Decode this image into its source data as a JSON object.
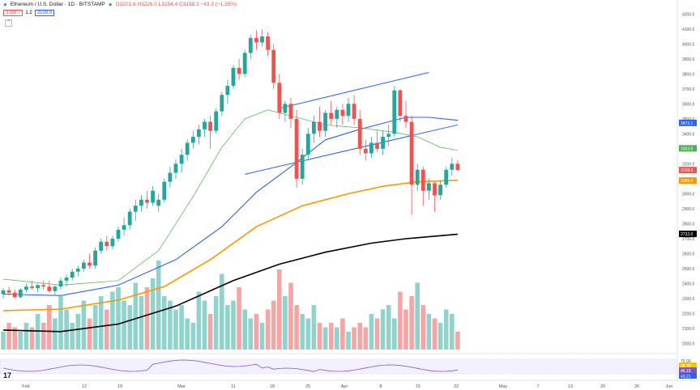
{
  "header": {
    "symbol": "Ethereum / U.S. Dollar · 1D · BITSTAMP",
    "ohlc": "O3201.6 H3226.0 L3154.4 C3158.3 −43.3 (−1.35%)",
    "bid": "3158.7",
    "spread": "1.2",
    "ask": "3159.9",
    "logo": "17"
  },
  "colors": {
    "up": "#26a69a",
    "down": "#ef5350",
    "ma20": "#4caf50",
    "ma50": "#2962ff",
    "ma100": "#ff9800",
    "ma200": "#000000",
    "channel": "#2962ff"
  },
  "chart_data": {
    "type": "candlestick",
    "x_labels": [
      "Feb",
      "12",
      "19",
      "Mar",
      "11",
      "18",
      "25",
      "Apr",
      "8",
      "15",
      "22",
      "May",
      "7",
      "13",
      "20",
      "26",
      "Jun"
    ],
    "y_ticks": [
      "4200.0",
      "4100.0",
      "4000.0",
      "3900.0",
      "3800.0",
      "3700.0",
      "3600.0",
      "3500.0",
      "3400.0",
      "3300.0",
      "3200.0",
      "3100.0",
      "3000.0",
      "2900.0",
      "2800.0",
      "2700.0",
      "2600.0",
      "2500.0",
      "2400.0",
      "2300.0",
      "2200.0",
      "2100.0",
      "2000.0"
    ],
    "ylim": [
      1960,
      4250
    ],
    "ohlc": [
      [
        2330,
        2370,
        2300,
        2355
      ],
      [
        2355,
        2380,
        2320,
        2340
      ],
      [
        2340,
        2360,
        2300,
        2310
      ],
      [
        2310,
        2370,
        2300,
        2360
      ],
      [
        2360,
        2400,
        2340,
        2380
      ],
      [
        2380,
        2420,
        2360,
        2370
      ],
      [
        2370,
        2400,
        2340,
        2390
      ],
      [
        2390,
        2420,
        2360,
        2380
      ],
      [
        2380,
        2420,
        2340,
        2350
      ],
      [
        2350,
        2390,
        2320,
        2380
      ],
      [
        2380,
        2440,
        2360,
        2420
      ],
      [
        2420,
        2460,
        2380,
        2440
      ],
      [
        2440,
        2500,
        2420,
        2480
      ],
      [
        2480,
        2520,
        2450,
        2500
      ],
      [
        2500,
        2560,
        2480,
        2540
      ],
      [
        2540,
        2600,
        2500,
        2520
      ],
      [
        2520,
        2640,
        2500,
        2620
      ],
      [
        2620,
        2700,
        2600,
        2680
      ],
      [
        2680,
        2720,
        2620,
        2650
      ],
      [
        2650,
        2720,
        2630,
        2700
      ],
      [
        2700,
        2780,
        2680,
        2760
      ],
      [
        2760,
        2840,
        2720,
        2790
      ],
      [
        2790,
        2900,
        2760,
        2880
      ],
      [
        2880,
        2960,
        2820,
        2920
      ],
      [
        2920,
        2990,
        2880,
        2960
      ],
      [
        2960,
        3020,
        2900,
        2940
      ],
      [
        2940,
        3050,
        2920,
        3020
      ],
      [
        2920,
        3000,
        2880,
        2960
      ],
      [
        2960,
        3100,
        2940,
        3080
      ],
      [
        3080,
        3180,
        3040,
        3140
      ],
      [
        3140,
        3230,
        3100,
        3200
      ],
      [
        3200,
        3300,
        3140,
        3260
      ],
      [
        3260,
        3360,
        3220,
        3340
      ],
      [
        3340,
        3420,
        3300,
        3380
      ],
      [
        3380,
        3460,
        3330,
        3430
      ],
      [
        3430,
        3500,
        3380,
        3480
      ],
      [
        3480,
        3520,
        3300,
        3420
      ],
      [
        3420,
        3570,
        3400,
        3550
      ],
      [
        3550,
        3680,
        3520,
        3660
      ],
      [
        3660,
        3760,
        3600,
        3720
      ],
      [
        3720,
        3860,
        3700,
        3840
      ],
      [
        3840,
        3900,
        3760,
        3800
      ],
      [
        3800,
        3960,
        3780,
        3940
      ],
      [
        3940,
        4060,
        3900,
        4040
      ],
      [
        4040,
        4090,
        3960,
        4010
      ],
      [
        4010,
        4100,
        3980,
        4050
      ],
      [
        4050,
        4080,
        3920,
        3960
      ],
      [
        3960,
        4000,
        3700,
        3740
      ],
      [
        3740,
        3800,
        3500,
        3540
      ],
      [
        3540,
        3620,
        3480,
        3600
      ],
      [
        3600,
        3640,
        3440,
        3500
      ],
      [
        3500,
        3560,
        3040,
        3100
      ],
      [
        3100,
        3300,
        3060,
        3260
      ],
      [
        3260,
        3440,
        3220,
        3400
      ],
      [
        3400,
        3520,
        3340,
        3480
      ],
      [
        3480,
        3580,
        3380,
        3420
      ],
      [
        3420,
        3560,
        3380,
        3540
      ],
      [
        3540,
        3620,
        3460,
        3500
      ],
      [
        3500,
        3580,
        3440,
        3560
      ],
      [
        3560,
        3600,
        3460,
        3520
      ],
      [
        3520,
        3640,
        3480,
        3600
      ],
      [
        3600,
        3660,
        3460,
        3500
      ],
      [
        3500,
        3560,
        3260,
        3300
      ],
      [
        3300,
        3360,
        3220,
        3270
      ],
      [
        3270,
        3380,
        3240,
        3340
      ],
      [
        3340,
        3420,
        3280,
        3300
      ],
      [
        3300,
        3420,
        3260,
        3380
      ],
      [
        3380,
        3460,
        3320,
        3400
      ],
      [
        3400,
        3720,
        3380,
        3690
      ],
      [
        3690,
        3700,
        3480,
        3520
      ],
      [
        3520,
        3620,
        3440,
        3480
      ],
      [
        3480,
        3520,
        2860,
        3060
      ],
      [
        3060,
        3200,
        3020,
        3160
      ],
      [
        3160,
        3180,
        2920,
        3020
      ],
      [
        3020,
        3100,
        2960,
        3070
      ],
      [
        3070,
        3080,
        2880,
        2990
      ],
      [
        2990,
        3090,
        2960,
        3060
      ],
      [
        3060,
        3180,
        3040,
        3160
      ],
      [
        3160,
        3240,
        3120,
        3200
      ],
      [
        3200,
        3226,
        3154,
        3158
      ]
    ],
    "volume_rel": [
      0.2,
      0.3,
      0.25,
      0.2,
      0.3,
      0.25,
      0.4,
      0.3,
      0.5,
      0.35,
      0.6,
      0.45,
      0.3,
      0.4,
      0.55,
      0.35,
      0.5,
      0.6,
      0.45,
      0.65,
      0.7,
      0.55,
      0.5,
      0.75,
      0.6,
      0.7,
      0.8,
      1.0,
      0.6,
      0.55,
      0.45,
      0.5,
      0.35,
      0.3,
      0.65,
      0.55,
      0.4,
      0.6,
      0.85,
      0.5,
      0.55,
      0.7,
      0.45,
      0.35,
      0.4,
      0.3,
      0.45,
      0.55,
      0.9,
      0.6,
      0.75,
      0.5,
      0.4,
      0.35,
      0.5,
      0.3,
      0.25,
      0.3,
      0.25,
      0.35,
      0.2,
      0.25,
      0.3,
      0.25,
      0.4,
      0.35,
      0.45,
      0.5,
      0.35,
      0.65,
      0.45,
      0.6,
      0.75,
      0.5,
      0.4,
      0.35,
      0.3,
      0.45,
      0.4,
      0.2
    ],
    "ma20": [
      [
        0,
        2430
      ],
      [
        10,
        2390
      ],
      [
        20,
        2420
      ],
      [
        27,
        2620
      ],
      [
        33,
        2980
      ],
      [
        38,
        3310
      ],
      [
        42,
        3500
      ],
      [
        46,
        3560
      ],
      [
        50,
        3520
      ],
      [
        56,
        3460
      ],
      [
        62,
        3440
      ],
      [
        68,
        3410
      ],
      [
        72,
        3380
      ],
      [
        76,
        3310
      ],
      [
        79,
        3290
      ]
    ],
    "ma50": [
      [
        0,
        2330
      ],
      [
        10,
        2320
      ],
      [
        20,
        2390
      ],
      [
        30,
        2560
      ],
      [
        38,
        2780
      ],
      [
        44,
        3010
      ],
      [
        50,
        3180
      ],
      [
        56,
        3360
      ],
      [
        62,
        3430
      ],
      [
        66,
        3470
      ],
      [
        70,
        3510
      ],
      [
        74,
        3510
      ],
      [
        79,
        3490
      ]
    ],
    "ma100": [
      [
        0,
        2220
      ],
      [
        10,
        2230
      ],
      [
        20,
        2290
      ],
      [
        28,
        2380
      ],
      [
        36,
        2560
      ],
      [
        44,
        2780
      ],
      [
        52,
        2920
      ],
      [
        60,
        3000
      ],
      [
        66,
        3050
      ],
      [
        72,
        3080
      ],
      [
        79,
        3090
      ]
    ],
    "ma200": [
      [
        0,
        2090
      ],
      [
        10,
        2080
      ],
      [
        20,
        2130
      ],
      [
        30,
        2250
      ],
      [
        40,
        2420
      ],
      [
        48,
        2530
      ],
      [
        56,
        2610
      ],
      [
        64,
        2670
      ],
      [
        70,
        2700
      ],
      [
        76,
        2720
      ],
      [
        79,
        2730
      ]
    ],
    "channel_upper": [
      [
        48,
        3570
      ],
      [
        74,
        3810
      ]
    ],
    "channel_lower": [
      [
        42,
        3130
      ],
      [
        79,
        3460
      ]
    ],
    "price_labels": [
      {
        "value": "3473.1",
        "y": 3473,
        "color": "#2962ff"
      },
      {
        "value": "3303.8",
        "y": 3303,
        "color": "#4caf50"
      },
      {
        "value": "3158.3",
        "y": 3158,
        "color": "#ef5350"
      },
      {
        "value": "3088.6",
        "y": 3088,
        "color": "#ff9800"
      },
      {
        "value": "2732.0",
        "y": 2732,
        "color": "#000000"
      }
    ],
    "rsi": {
      "lines": [
        "75.00",
        "38.78",
        "46.19",
        "43.21"
      ]
    }
  }
}
